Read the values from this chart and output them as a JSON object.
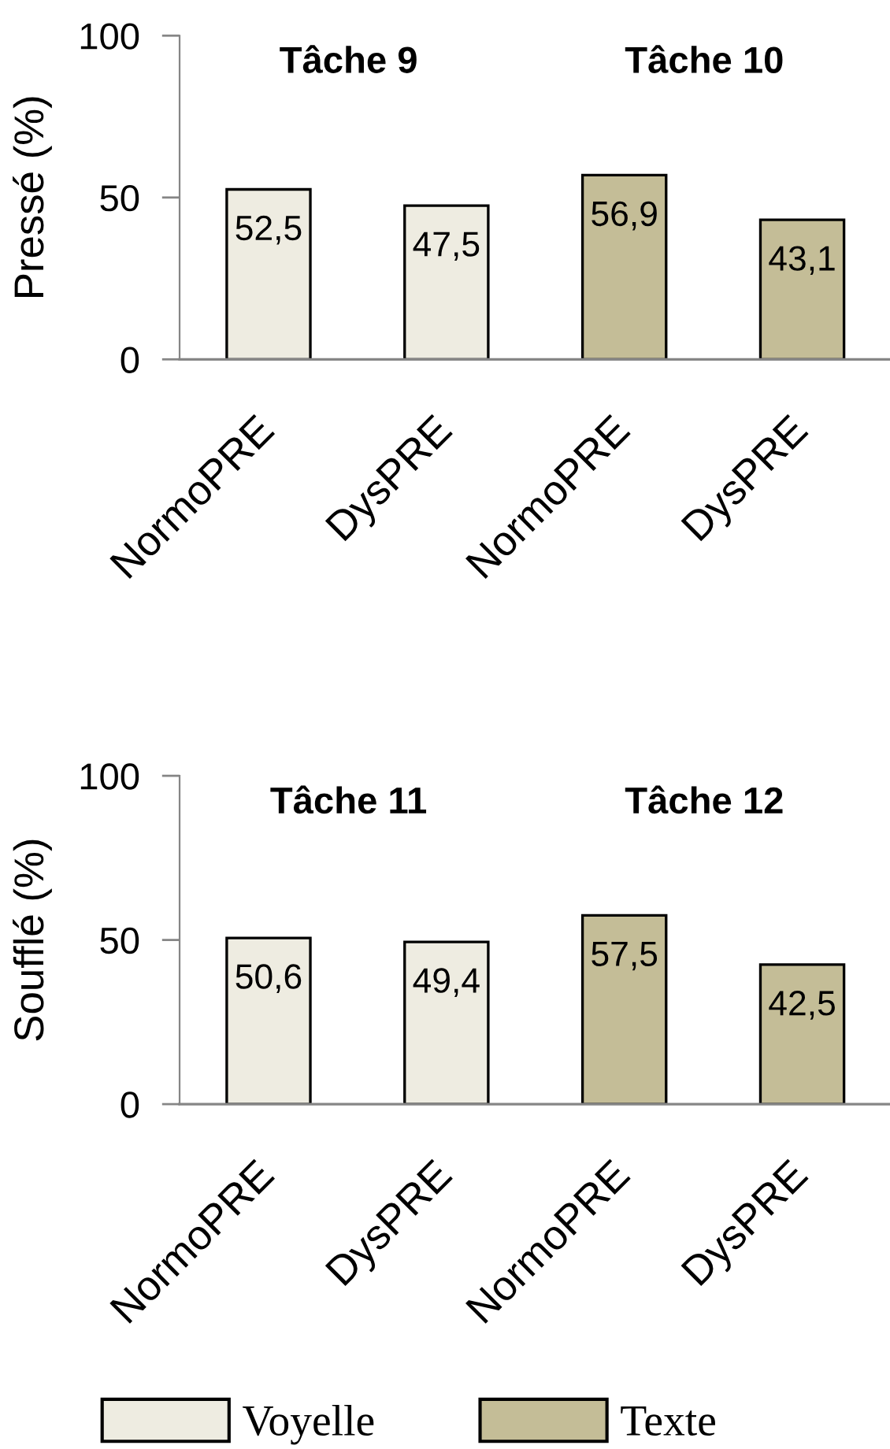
{
  "chart_data": [
    {
      "type": "bar",
      "ylabel": "Pressé (%)",
      "categories": [
        "NormoPRE",
        "DysPRE",
        "NormoPRE",
        "DysPRE"
      ],
      "series": [
        {
          "name": "Voyelle",
          "color": "#eeece1",
          "values": [
            52.5,
            47.5,
            null,
            null
          ],
          "value_labels": [
            "52,5",
            "47,5",
            null,
            null
          ]
        },
        {
          "name": "Texte",
          "color": "#c4bd97",
          "values": [
            null,
            null,
            56.9,
            43.1
          ],
          "value_labels": [
            null,
            null,
            "56,9",
            "43,1"
          ]
        }
      ],
      "ylim": [
        0,
        100
      ],
      "yticks": [
        0,
        50,
        100
      ],
      "annotations": [
        "Tâche 9",
        "Tâche 10"
      ],
      "legend": "bottom"
    },
    {
      "type": "bar",
      "ylabel": "Soufflé (%)",
      "categories": [
        "NormoPRE",
        "DysPRE",
        "NormoPRE",
        "DysPRE"
      ],
      "series": [
        {
          "name": "Voyelle",
          "color": "#eeece1",
          "values": [
            50.6,
            49.4,
            null,
            null
          ],
          "value_labels": [
            "50,6",
            "49,4",
            null,
            null
          ]
        },
        {
          "name": "Texte",
          "color": "#c4bd97",
          "values": [
            null,
            null,
            57.5,
            42.5
          ],
          "value_labels": [
            null,
            null,
            "57,5",
            "42,5"
          ]
        }
      ],
      "ylim": [
        0,
        100
      ],
      "yticks": [
        0,
        50,
        100
      ],
      "annotations": [
        "Tâche 11",
        "Tâche 12"
      ],
      "legend": "bottom"
    }
  ]
}
